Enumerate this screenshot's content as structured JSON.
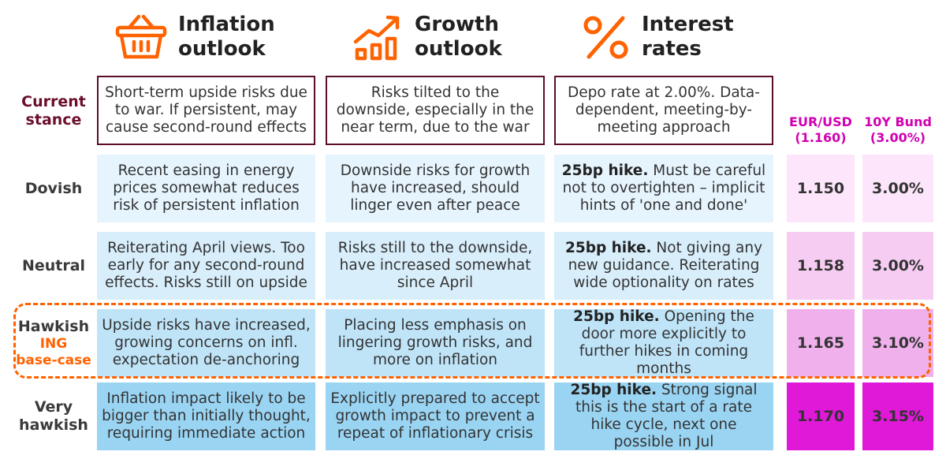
{
  "headers": {
    "inflation": "Inflation\noutlook",
    "growth": "Growth\noutlook",
    "rates": "Interest\nrates"
  },
  "market_headers": {
    "eurusd_name": "EUR/USD",
    "eurusd_spot": "(1.160)",
    "bund_name": "10Y Bund",
    "bund_spot": "(3.00%)"
  },
  "current_stance": {
    "label": "Current\nstance",
    "inflation": "Short-term upside risks due to war. If persistent, may cause second-round effects",
    "growth": "Risks tilted to the downside, especially in the near term, due to the war",
    "rates": "Depo rate at 2.00%. Data-dependent, meeting-by-meeting approach"
  },
  "scenarios": [
    {
      "label": "Dovish",
      "sublabel": "",
      "inflation": "Recent easing in energy prices somewhat reduces risk of persistent inflation",
      "growth": "Downside risks for growth have increased, should linger even after peace",
      "rates_bold": "25bp hike.",
      "rates_text": " Must be careful not to overtighten – implicit hints of 'one and done'",
      "eurusd": "1.150",
      "bund": "3.00%"
    },
    {
      "label": "Neutral",
      "sublabel": "",
      "inflation": "Reiterating April views. Too early for any second-round effects. Risks still on upside",
      "growth": "Risks still to the downside, have increased somewhat since April",
      "rates_bold": "25bp hike.",
      "rates_text": " Not giving any new guidance. Reiterating wide optionality on rates",
      "eurusd": "1.158",
      "bund": "3.00%"
    },
    {
      "label": "Hawkish",
      "sublabel": "ING\nbase-case",
      "inflation": "Upside risks have increased, growing concerns on infl. expectation de-anchoring",
      "growth": "Placing less emphasis on lingering growth risks, and more on inflation",
      "rates_bold": "25bp hike.",
      "rates_text": " Opening the door more explicitly to further hikes in coming months",
      "eurusd": "1.165",
      "bund": "3.10%"
    },
    {
      "label": "Very\nhawkish",
      "sublabel": "",
      "inflation": "Inflation impact likely to be bigger than initially thought, requiring immediate action",
      "growth": "Explicitly prepared to accept growth impact to prevent a repeat of inflationary crisis",
      "rates_bold": "25bp hike.",
      "rates_text": " Strong signal this is the start of a rate hike cycle, next one possible in Jul",
      "eurusd": "1.170",
      "bund": "3.15%"
    }
  ],
  "colors": {
    "accent": "#ff6200",
    "stance_border": "#5b0f27",
    "market_header": "#d100b0",
    "text_blue": [
      "#e6f4fd",
      "#d8eefb",
      "#bfe4f8",
      "#9ad4f3"
    ],
    "num_pink": [
      "#fde6fb",
      "#f7ccf3",
      "#f0b0ec",
      "#e018d8"
    ]
  },
  "icons": {
    "inflation": "shopping-basket-icon",
    "growth": "growth-bars-icon",
    "rates": "percent-icon"
  }
}
